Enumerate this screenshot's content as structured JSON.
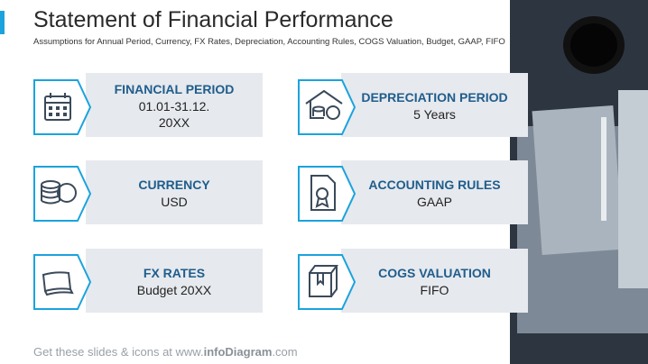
{
  "header": {
    "title": "Statement of Financial Performance",
    "subtitle": "Assumptions for Annual Period, Currency, FX Rates, Depreciation, Accounting Rules, COGS Valuation, Budget, GAAP, FIFO"
  },
  "items": [
    {
      "title": "FINANCIAL PERIOD",
      "lines": [
        "01.01-31.12.",
        "20XX"
      ]
    },
    {
      "title": "DEPRECIATION PERIOD",
      "lines": [
        "5 Years"
      ]
    },
    {
      "title": "CURRENCY",
      "lines": [
        "USD"
      ]
    },
    {
      "title": "ACCOUNTING RULES",
      "lines": [
        "GAAP"
      ]
    },
    {
      "title": "FX RATES",
      "lines": [
        "Budget 20XX"
      ]
    },
    {
      "title": "COGS VALUATION",
      "lines": [
        "FIFO"
      ]
    }
  ],
  "footer": {
    "prefix": "Get these slides & icons at www.",
    "brand": "infoDiagram",
    "suffix": ".com"
  }
}
